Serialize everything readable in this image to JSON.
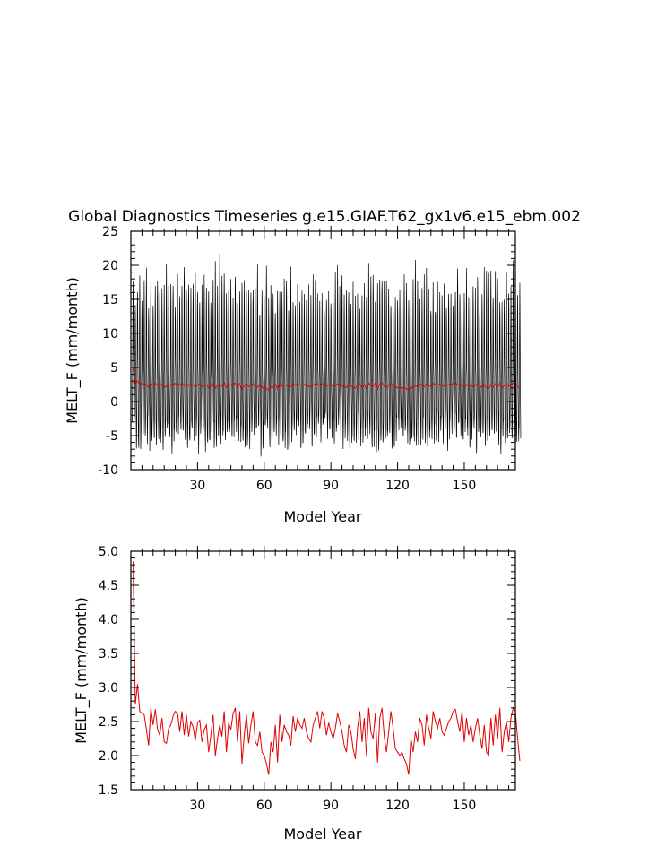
{
  "title": "Global Diagnostics Timeseries g.e15.GIAF.T62_gx1v6.e15_ebm.002",
  "colors": {
    "monthly": "#000000",
    "annual": "#e00000",
    "axes": "#000000"
  },
  "chart_data": [
    {
      "type": "line",
      "title": "Global Diagnostics Timeseries g.e15.GIAF.T62_gx1v6.e15_ebm.002",
      "xlabel": "Model Year",
      "ylabel": "MELT_F (mm/month)",
      "xlim": [
        0,
        173
      ],
      "ylim": [
        -10,
        25
      ],
      "xticks": [
        30,
        60,
        90,
        120,
        150
      ],
      "yticks": [
        -10,
        -5,
        0,
        5,
        10,
        15,
        20,
        25
      ],
      "grid": false,
      "series": [
        {
          "color": "#000000",
          "resolution": "monthly",
          "annual_mean": "series[1] of panel 2",
          "seasonal_max_approx": [
            14,
            21
          ],
          "seasonal_min_approx": [
            -7,
            -3
          ]
        },
        {
          "color": "#e00000",
          "same_as": "panel 2 annual series"
        }
      ]
    },
    {
      "type": "line",
      "xlabel": "Model Year",
      "ylabel": "MELT_F (mm/month)",
      "xlim": [
        0,
        173
      ],
      "ylim": [
        1.5,
        5.0
      ],
      "xticks": [
        30,
        60,
        90,
        120,
        150
      ],
      "yticks": [
        1.5,
        2.0,
        2.5,
        3.0,
        3.5,
        4.0,
        4.5,
        5.0
      ],
      "ytick_labels": [
        "1.5",
        "2.0",
        "2.5",
        "3.0",
        "3.5",
        "4.0",
        "4.5",
        "5.0"
      ],
      "grid": false,
      "series": [
        {
          "color": "#e00000",
          "x_start": 1,
          "values": [
            4.85,
            2.75,
            3.05,
            2.65,
            2.62,
            2.6,
            2.38,
            2.15,
            2.7,
            2.45,
            2.68,
            2.38,
            2.3,
            2.55,
            2.2,
            2.18,
            2.4,
            2.45,
            2.58,
            2.65,
            2.62,
            2.35,
            2.65,
            2.3,
            2.6,
            2.28,
            2.5,
            2.42,
            2.22,
            2.48,
            2.52,
            2.2,
            2.38,
            2.45,
            2.05,
            2.3,
            2.6,
            2.0,
            2.25,
            2.45,
            2.28,
            2.65,
            2.05,
            2.48,
            2.38,
            2.62,
            2.7,
            2.2,
            2.65,
            1.88,
            2.3,
            2.6,
            2.18,
            2.45,
            2.65,
            2.2,
            2.15,
            2.35,
            2.05,
            2.0,
            1.88,
            1.72,
            2.2,
            2.05,
            2.45,
            1.9,
            2.6,
            2.2,
            2.45,
            2.35,
            2.3,
            2.15,
            2.58,
            2.35,
            2.55,
            2.45,
            2.4,
            2.55,
            2.35,
            2.25,
            2.2,
            2.45,
            2.55,
            2.65,
            2.4,
            2.65,
            2.55,
            2.3,
            2.48,
            2.35,
            2.25,
            2.4,
            2.62,
            2.5,
            2.35,
            2.15,
            2.05,
            2.45,
            2.35,
            2.1,
            1.95,
            2.4,
            2.65,
            2.2,
            2.55,
            2.0,
            2.7,
            2.35,
            2.25,
            2.62,
            1.9,
            2.55,
            2.7,
            2.28,
            2.05,
            2.35,
            2.65,
            2.4,
            2.1,
            2.05,
            2.0,
            2.05,
            1.95,
            1.88,
            1.72,
            2.25,
            2.05,
            2.35,
            2.2,
            2.55,
            2.45,
            2.15,
            2.6,
            2.4,
            2.25,
            2.65,
            2.5,
            2.4,
            2.55,
            2.35,
            2.3,
            2.4,
            2.5,
            2.55,
            2.65,
            2.68,
            2.5,
            2.35,
            2.65,
            2.2,
            2.55,
            2.3,
            2.45,
            2.2,
            2.4,
            2.55,
            2.3,
            2.1,
            2.45,
            2.05,
            2.0,
            2.55,
            2.15,
            2.6,
            2.25,
            2.7,
            2.05,
            2.35,
            2.5,
            2.2,
            2.55,
            2.7,
            2.65,
            2.25,
            1.92
          ]
        }
      ]
    }
  ]
}
